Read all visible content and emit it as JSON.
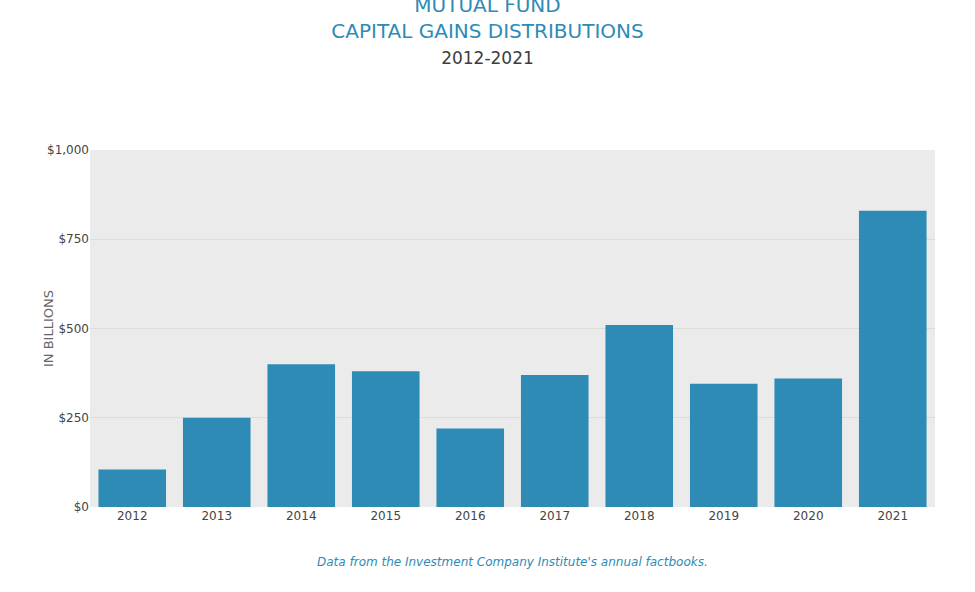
{
  "chart_data": {
    "type": "bar",
    "title": "MUTUAL FUND\nCAPITAL GAINS DISTRIBUTIONS",
    "subtitle": "2012-2021",
    "y_label": "IN BILLIONS",
    "annotations": [
      "Data from the Investment Company Institute's annual factbooks."
    ],
    "categories": [
      "2012",
      "2013",
      "2014",
      "2015",
      "2016",
      "2017",
      "2018",
      "2019",
      "2020",
      "2021"
    ],
    "values": [
      105,
      250,
      400,
      380,
      220,
      370,
      510,
      345,
      360,
      830
    ],
    "color": "#2e8bb5",
    "ylim": [
      0,
      1000
    ],
    "yticks": [
      {
        "value": 0,
        "label": "$0"
      },
      {
        "value": 250,
        "label": "$250"
      },
      {
        "value": 500,
        "label": "$500"
      },
      {
        "value": 750,
        "label": "$750"
      },
      {
        "value": 1000,
        "label": "$1,000"
      }
    ],
    "grid": true
  }
}
